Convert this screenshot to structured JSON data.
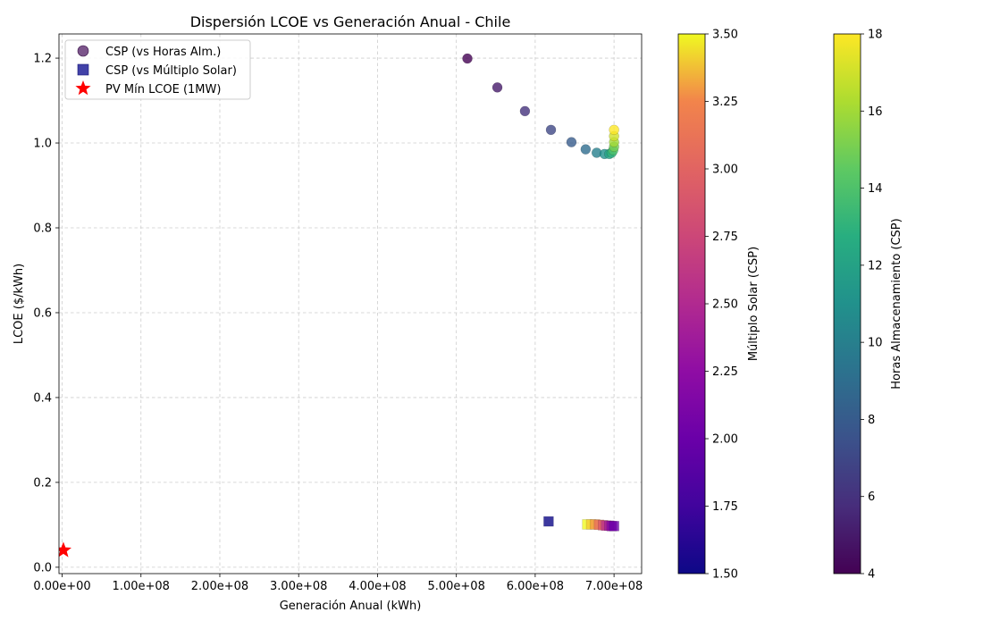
{
  "chart_data": {
    "type": "scatter",
    "title": "Dispersión LCOE vs Generación Anual - Chile",
    "xlabel": "Generación Anual (kWh)",
    "ylabel": "LCOE ($/kWh)",
    "xlim": [
      -4000000,
      735000000
    ],
    "ylim": [
      -0.015,
      1.257
    ],
    "x_ticks": [
      0,
      100000000,
      200000000,
      300000000,
      400000000,
      500000000,
      600000000,
      700000000
    ],
    "x_tick_labels": [
      "0.00e+00",
      "1.00e+08",
      "2.00e+08",
      "3.00e+08",
      "4.00e+08",
      "5.00e+08",
      "6.00e+08",
      "7.00e+08"
    ],
    "y_ticks": [
      0.0,
      0.2,
      0.4,
      0.6,
      0.8,
      1.0,
      1.2
    ],
    "y_tick_labels": [
      "0.0",
      "0.2",
      "0.4",
      "0.6",
      "0.8",
      "1.0",
      "1.2"
    ],
    "grid": true,
    "legend_position": "top-left",
    "series": [
      {
        "name": "CSP (vs Horas Alm.)",
        "marker": "circle",
        "color_by": "Horas Almacenamiento (CSP)",
        "points": [
          {
            "x": 514000000,
            "y": 1.199,
            "c": 4
          },
          {
            "x": 552000000,
            "y": 1.131,
            "c": 5
          },
          {
            "x": 587000000,
            "y": 1.075,
            "c": 6
          },
          {
            "x": 620000000,
            "y": 1.031,
            "c": 7
          },
          {
            "x": 646000000,
            "y": 1.002,
            "c": 8
          },
          {
            "x": 664000000,
            "y": 0.985,
            "c": 9
          },
          {
            "x": 678000000,
            "y": 0.977,
            "c": 10
          },
          {
            "x": 688000000,
            "y": 0.974,
            "c": 11
          },
          {
            "x": 694000000,
            "y": 0.974,
            "c": 12
          },
          {
            "x": 697000000,
            "y": 0.977,
            "c": 13
          },
          {
            "x": 699000000,
            "y": 0.983,
            "c": 14
          },
          {
            "x": 700000000,
            "y": 0.991,
            "c": 15
          },
          {
            "x": 700000000,
            "y": 1.002,
            "c": 16
          },
          {
            "x": 700000000,
            "y": 1.016,
            "c": 17
          },
          {
            "x": 700000000,
            "y": 1.031,
            "c": 18
          }
        ]
      },
      {
        "name": "CSP (vs Múltiplo Solar)",
        "marker": "square",
        "color_by": "Múltiplo Solar (CSP)",
        "points": [
          {
            "x": 617000000,
            "y": 0.108,
            "c": 1.5
          },
          {
            "x": 666000000,
            "y": 0.101,
            "c": 3.5
          },
          {
            "x": 671000000,
            "y": 0.101,
            "c": 3.4
          },
          {
            "x": 676000000,
            "y": 0.101,
            "c": 3.3
          },
          {
            "x": 681000000,
            "y": 0.1,
            "c": 3.1
          },
          {
            "x": 686000000,
            "y": 0.099,
            "c": 2.9
          },
          {
            "x": 690000000,
            "y": 0.098,
            "c": 2.6
          },
          {
            "x": 694000000,
            "y": 0.098,
            "c": 2.4
          },
          {
            "x": 697000000,
            "y": 0.097,
            "c": 2.2
          },
          {
            "x": 700000000,
            "y": 0.097,
            "c": 2.0
          }
        ]
      },
      {
        "name": "PV Mín LCOE (1MW)",
        "marker": "star",
        "color": "#ff0000",
        "points": [
          {
            "x": 1600000,
            "y": 0.04
          }
        ]
      }
    ],
    "colorbars": [
      {
        "label": "Múltiplo Solar (CSP)",
        "colormap": "plasma",
        "range": [
          1.5,
          3.5
        ],
        "ticks": [
          1.5,
          1.75,
          2.0,
          2.25,
          2.5,
          2.75,
          3.0,
          3.25,
          3.5
        ],
        "tick_labels": [
          "1.50",
          "1.75",
          "2.00",
          "2.25",
          "2.50",
          "2.75",
          "3.00",
          "3.25",
          "3.50"
        ]
      },
      {
        "label": "Horas Almacenamiento (CSP)",
        "colormap": "viridis",
        "range": [
          4,
          18
        ],
        "ticks": [
          4,
          6,
          8,
          10,
          12,
          14,
          16,
          18
        ],
        "tick_labels": [
          "4",
          "6",
          "8",
          "10",
          "12",
          "14",
          "16",
          "18"
        ]
      }
    ]
  }
}
